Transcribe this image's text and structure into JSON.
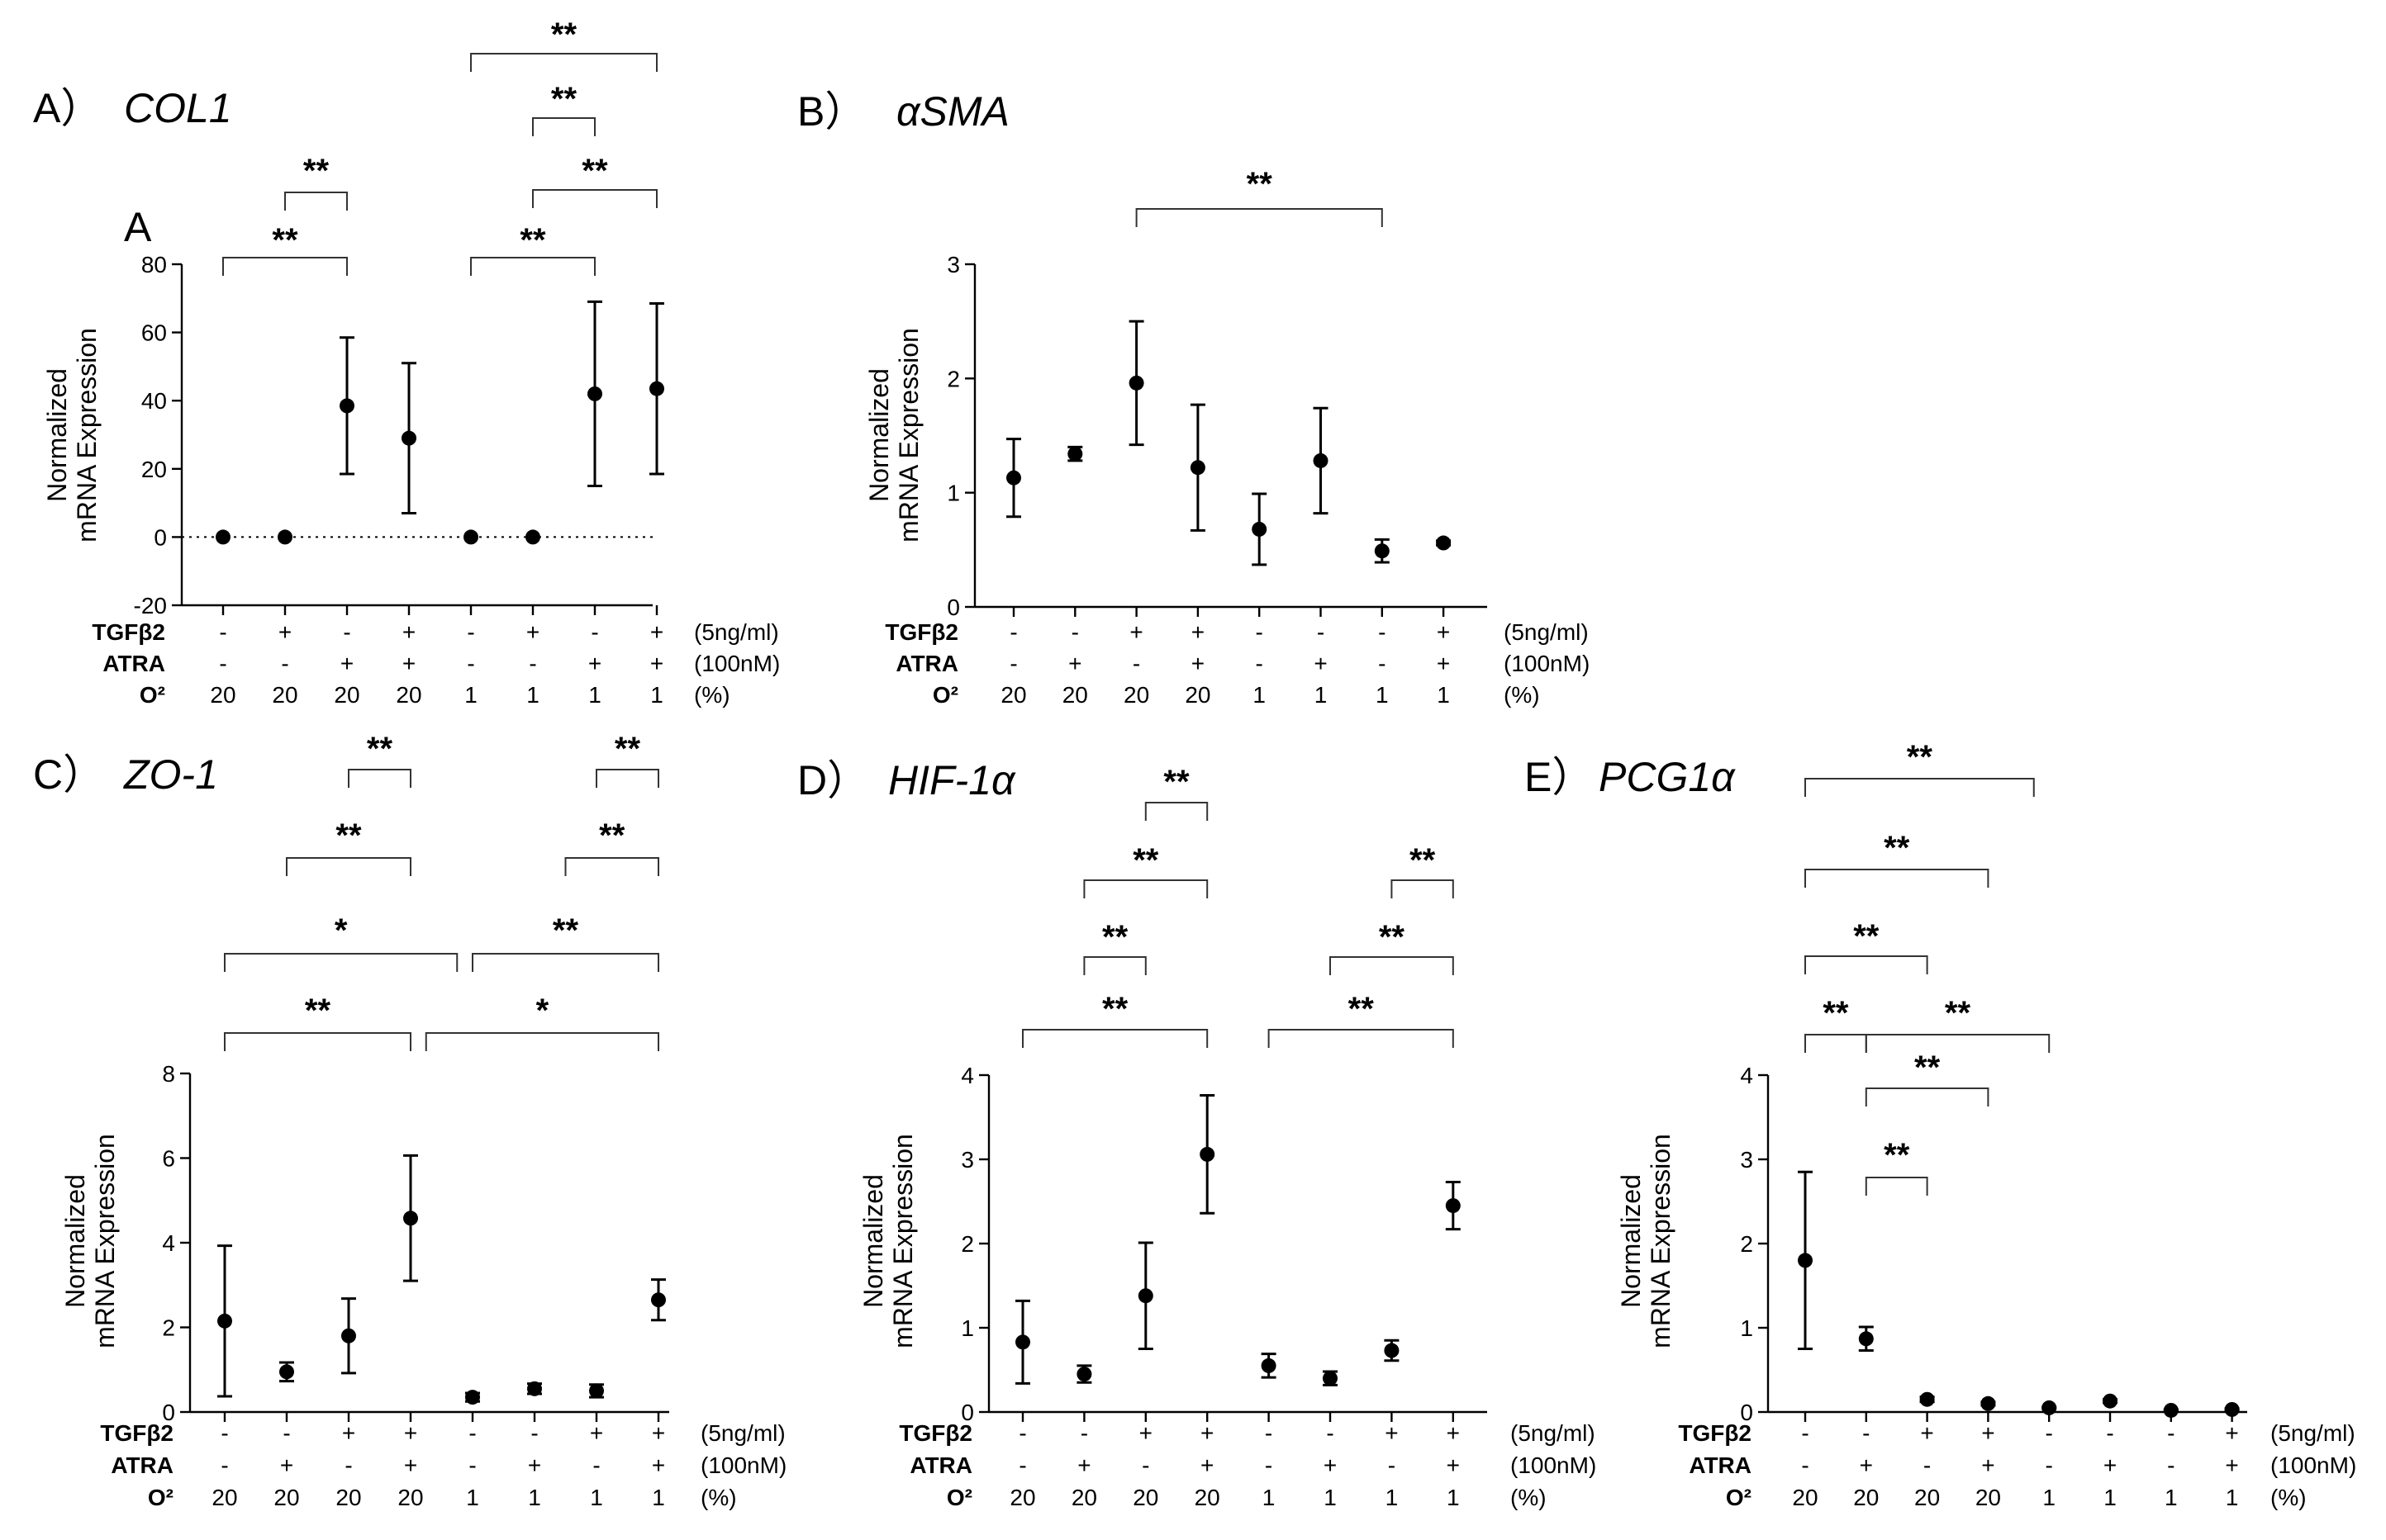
{
  "chart_data": [
    {
      "type": "scatter",
      "panel_label": "A）",
      "title": "COL1",
      "inner_label": "A",
      "ylabel": [
        "Normalized",
        "mRNA Expression"
      ],
      "ylim": [
        -20,
        80
      ],
      "yticks": [
        -20,
        0,
        20,
        40,
        60,
        80
      ],
      "zero_line": true,
      "conditions": {
        "TGFβ2": [
          "-",
          "+",
          "-",
          "+",
          "-",
          "+",
          "-",
          "+"
        ],
        "ATRA": [
          "-",
          "-",
          "+",
          "+",
          "-",
          "-",
          "+",
          "+"
        ],
        "O²": [
          "20",
          "20",
          "20",
          "20",
          "1",
          "1",
          "1",
          "1"
        ]
      },
      "row_labels": [
        "TGFβ2",
        "ATRA",
        "O²"
      ],
      "row_units": [
        "(5ng/ml)",
        "(100nM)",
        "(%)"
      ],
      "means": [
        0,
        0,
        38.5,
        29,
        0,
        0,
        42,
        43.5
      ],
      "errors": [
        0,
        0,
        20,
        22,
        0,
        0,
        27,
        25
      ],
      "significance": [
        {
          "from": 1,
          "to": 2,
          "label": "**"
        },
        {
          "from": 0,
          "to": 2,
          "label": "**"
        },
        {
          "from": 4,
          "to": 7,
          "label": "**"
        },
        {
          "from": 5,
          "to": 6,
          "label": "**"
        },
        {
          "from": 5,
          "to": 7,
          "label": "**"
        },
        {
          "from": 4,
          "to": 6,
          "label": "**"
        }
      ]
    },
    {
      "type": "scatter",
      "panel_label": "B）",
      "title": "αSMA",
      "ylabel": [
        "Normalized",
        "mRNA Expression"
      ],
      "ylim": [
        0,
        3
      ],
      "yticks": [
        0,
        1,
        2,
        3
      ],
      "conditions": {
        "TGFβ2": [
          "-",
          "-",
          "+",
          "+",
          "-",
          "-",
          "-",
          "+"
        ],
        "ATRA": [
          "-",
          "+",
          "-",
          "+",
          "-",
          "+",
          "-",
          "+"
        ],
        "O²": [
          "20",
          "20",
          "20",
          "20",
          "1",
          "1",
          "1",
          "1"
        ]
      },
      "row_labels": [
        "TGFβ2",
        "ATRA",
        "O²"
      ],
      "row_units": [
        "(5ng/ml)",
        "(100nM)",
        "(%)"
      ],
      "means": [
        1.13,
        1.34,
        1.96,
        1.22,
        0.68,
        1.28,
        0.49,
        0.56
      ],
      "errors": [
        0.34,
        0.06,
        0.54,
        0.55,
        0.31,
        0.46,
        0.1,
        0.02
      ],
      "significance": [
        {
          "from": 2,
          "to": 6,
          "label": "**"
        }
      ]
    },
    {
      "type": "scatter",
      "panel_label": "C）",
      "title": "ZO-1",
      "ylabel": [
        "Normalized",
        "mRNA Expression"
      ],
      "ylim": [
        0,
        8
      ],
      "yticks": [
        0,
        2,
        4,
        6,
        8
      ],
      "conditions": {
        "TGFβ2": [
          "-",
          "-",
          "+",
          "+",
          "-",
          "-",
          "+",
          "+"
        ],
        "ATRA": [
          "-",
          "+",
          "-",
          "+",
          "-",
          "+",
          "-",
          "+"
        ],
        "O²": [
          "20",
          "20",
          "20",
          "20",
          "1",
          "1",
          "1",
          "1"
        ]
      },
      "row_labels": [
        "TGFβ2",
        "ATRA",
        "O²"
      ],
      "row_units": [
        "(5ng/ml)",
        "(100nM)",
        "(%)"
      ],
      "means": [
        2.15,
        0.95,
        1.8,
        4.58,
        0.35,
        0.55,
        0.5,
        2.65
      ],
      "errors": [
        1.78,
        0.22,
        0.88,
        1.48,
        0.1,
        0.12,
        0.15,
        0.48
      ],
      "significance": [
        {
          "from": 2,
          "to": 3,
          "label": "**"
        },
        {
          "from": 6,
          "to": 7,
          "label": "**"
        },
        {
          "from": 1,
          "to": 3,
          "label": "**"
        },
        {
          "from": 5.5,
          "to": 7,
          "label": "**"
        },
        {
          "from": 0,
          "to": 3.75,
          "label": "*"
        },
        {
          "from": 4,
          "to": 7,
          "label": "**"
        },
        {
          "from": 0,
          "to": 3,
          "label": "**"
        },
        {
          "from": 3.25,
          "to": 7,
          "label": "*"
        }
      ]
    },
    {
      "type": "scatter",
      "panel_label": "D）",
      "title": "HIF-1α",
      "ylabel": [
        "Normalized",
        "mRNA Expression"
      ],
      "ylim": [
        0,
        4
      ],
      "yticks": [
        0,
        1,
        2,
        3,
        4
      ],
      "conditions": {
        "TGFβ2": [
          "-",
          "-",
          "+",
          "+",
          "-",
          "-",
          "+",
          "+"
        ],
        "ATRA": [
          "-",
          "+",
          "-",
          "+",
          "-",
          "+",
          "-",
          "+"
        ],
        "O²": [
          "20",
          "20",
          "20",
          "20",
          "1",
          "1",
          "1",
          "1"
        ]
      },
      "row_labels": [
        "TGFβ2",
        "ATRA",
        "O²"
      ],
      "row_units": [
        "(5ng/ml)",
        "(100nM)",
        "(%)"
      ],
      "means": [
        0.83,
        0.45,
        1.38,
        3.06,
        0.55,
        0.4,
        0.73,
        2.45
      ],
      "errors": [
        0.49,
        0.1,
        0.63,
        0.7,
        0.14,
        0.08,
        0.12,
        0.28
      ],
      "significance": [
        {
          "from": 2,
          "to": 3,
          "label": "**"
        },
        {
          "from": 1,
          "to": 3,
          "label": "**"
        },
        {
          "from": 6,
          "to": 7,
          "label": "**"
        },
        {
          "from": 1,
          "to": 2,
          "label": "**"
        },
        {
          "from": 5,
          "to": 7,
          "label": "**"
        },
        {
          "from": 0,
          "to": 3,
          "label": "**"
        },
        {
          "from": 4,
          "to": 7,
          "label": "**"
        }
      ]
    },
    {
      "type": "scatter",
      "panel_label": "E）",
      "title": "PCG1α",
      "ylabel": [
        "Normalized",
        "mRNA Expression"
      ],
      "ylim": [
        0,
        4
      ],
      "yticks": [
        0,
        1,
        2,
        3,
        4
      ],
      "conditions": {
        "TGFβ2": [
          "-",
          "-",
          "+",
          "+",
          "-",
          "-",
          "-",
          "+"
        ],
        "ATRA": [
          "-",
          "+",
          "-",
          "+",
          "-",
          "+",
          "-",
          "+"
        ],
        "O²": [
          "20",
          "20",
          "20",
          "20",
          "1",
          "1",
          "1",
          "1"
        ]
      },
      "row_labels": [
        "TGFβ2",
        "ATRA",
        "O²"
      ],
      "row_units": [
        "(5ng/ml)",
        "(100nM)",
        "(%)"
      ],
      "means": [
        1.8,
        0.87,
        0.15,
        0.1,
        0.05,
        0.13,
        0.02,
        0.03
      ],
      "errors": [
        1.05,
        0.14,
        0.03,
        0.02,
        0.01,
        0.02,
        0.01,
        0.01
      ],
      "significance": [
        {
          "from": 0,
          "to": 3.75,
          "label": "**"
        },
        {
          "from": 0,
          "to": 3,
          "label": "**"
        },
        {
          "from": 0,
          "to": 2,
          "label": "**"
        },
        {
          "from": 0,
          "to": 1,
          "label": "**"
        },
        {
          "from": 1,
          "to": 4,
          "label": "**"
        },
        {
          "from": 1,
          "to": 3,
          "label": "**"
        },
        {
          "from": 1,
          "to": 2,
          "label": "**"
        }
      ]
    }
  ]
}
